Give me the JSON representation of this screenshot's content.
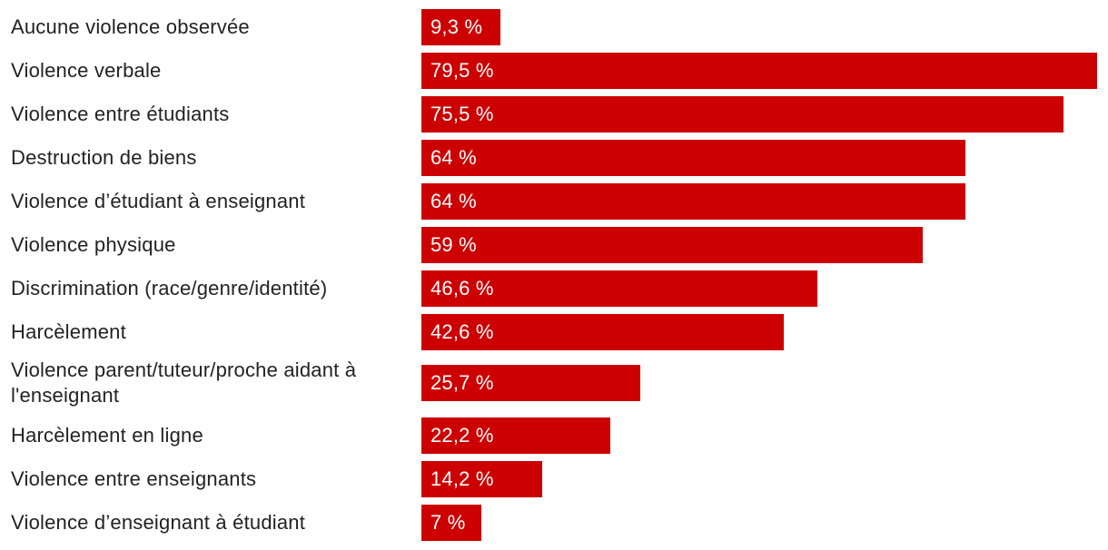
{
  "chart_data": {
    "type": "bar",
    "orientation": "horizontal",
    "categories": [
      "Aucune violence observée",
      "Violence verbale",
      "Violence entre étudiants",
      "Destruction de biens",
      "Violence d’étudiant à enseignant",
      "Violence physique",
      "Discrimination (race/genre/identité)",
      "Harcèlement",
      "Violence parent/tuteur/proche aidant à l'enseignant",
      "Harcèlement en ligne",
      "Violence entre enseignants",
      "Violence d’enseignant à étudiant"
    ],
    "values": [
      9.3,
      79.5,
      75.5,
      64,
      64,
      59,
      46.6,
      42.6,
      25.7,
      22.2,
      14.2,
      7
    ],
    "value_labels": [
      "9,3 %",
      "79,5 %",
      "75,5 %",
      "64 %",
      "64 %",
      "59 %",
      "46,6 %",
      "42,6 %",
      "25,7 %",
      "22,2 %",
      "14,2 %",
      "7 %"
    ],
    "title": "",
    "xlabel": "",
    "ylabel": "",
    "xlim": [
      0,
      79.5
    ],
    "grid": false,
    "legend": "none",
    "colors": {
      "bar": "#cc0000",
      "label_text": "#222222",
      "value_text": "#ffffff"
    }
  }
}
